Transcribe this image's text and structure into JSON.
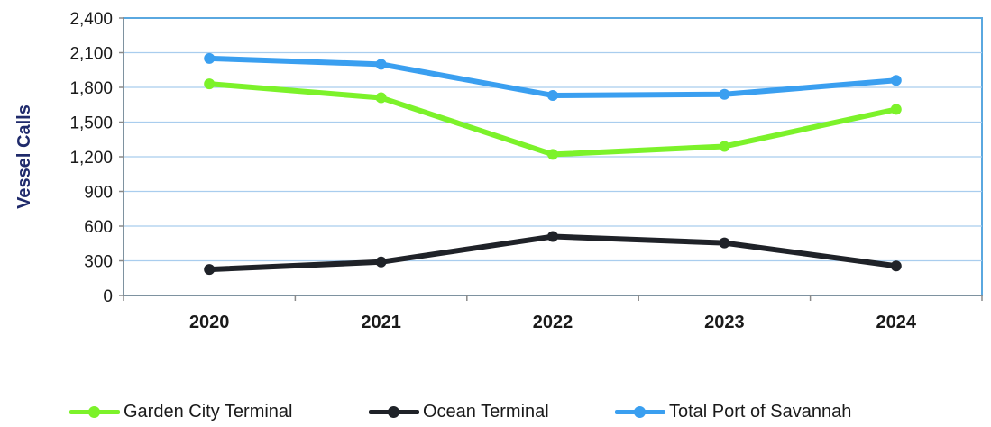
{
  "chart_data": {
    "type": "line",
    "title": "",
    "xlabel": "",
    "ylabel": "Vessel Calls",
    "categories": [
      "2020",
      "2021",
      "2022",
      "2023",
      "2024"
    ],
    "ylim": [
      0,
      2400
    ],
    "yticks": [
      0,
      300,
      600,
      900,
      1200,
      1500,
      1800,
      2100,
      2400
    ],
    "ytick_labels": [
      "0",
      "300",
      "600",
      "900",
      "1,200",
      "1,500",
      "1,800",
      "2,100",
      "2,400"
    ],
    "grid": true,
    "legend_position": "bottom",
    "series": [
      {
        "name": "Garden City Terminal",
        "color": "#7cf22a",
        "values": [
          1830,
          1710,
          1220,
          1290,
          1610
        ]
      },
      {
        "name": "Ocean Terminal",
        "color": "#1f2228",
        "values": [
          225,
          290,
          510,
          455,
          255
        ]
      },
      {
        "name": "Total Port of Savannah",
        "color": "#3a9ff0",
        "values": [
          2050,
          2000,
          1730,
          1740,
          1860
        ]
      }
    ],
    "colors": {
      "plot_border": "#5aa8e0",
      "gridline": "#a9cdee",
      "axis": "#8a8a8a"
    }
  }
}
